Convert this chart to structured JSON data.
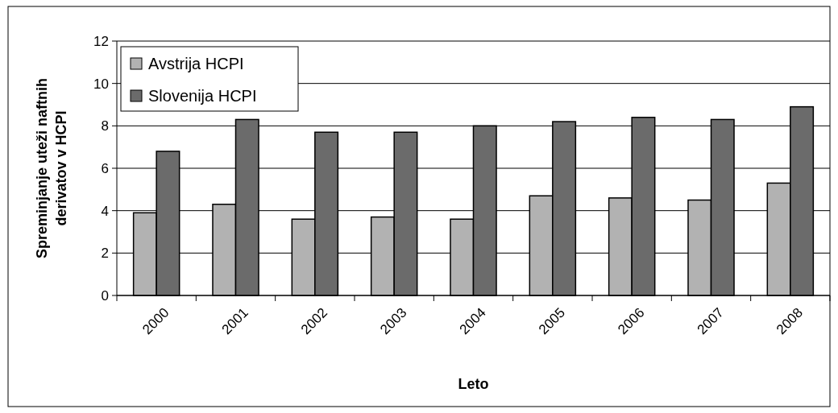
{
  "chart_data": {
    "type": "bar",
    "xlabel": "Leto",
    "ylabel": "Spreminjanje uteži naftnih derivatov v HCPI",
    "categories": [
      "2000",
      "2001",
      "2002",
      "2003",
      "2004",
      "2005",
      "2006",
      "2007",
      "2008"
    ],
    "series": [
      {
        "name": "Avstrija HCPI",
        "color": "#b2b2b2",
        "values": [
          3.9,
          4.3,
          3.6,
          3.7,
          3.6,
          4.7,
          4.6,
          4.5,
          5.3
        ]
      },
      {
        "name": "Slovenija HCPI",
        "color": "#6b6b6b",
        "values": [
          6.8,
          8.3,
          7.7,
          7.7,
          8.0,
          8.2,
          8.4,
          8.3,
          8.9
        ]
      }
    ],
    "ylim": [
      0,
      12
    ],
    "yticks": [
      0,
      2,
      4,
      6,
      8,
      10,
      12
    ],
    "grid": "y",
    "legend": "top left"
  }
}
